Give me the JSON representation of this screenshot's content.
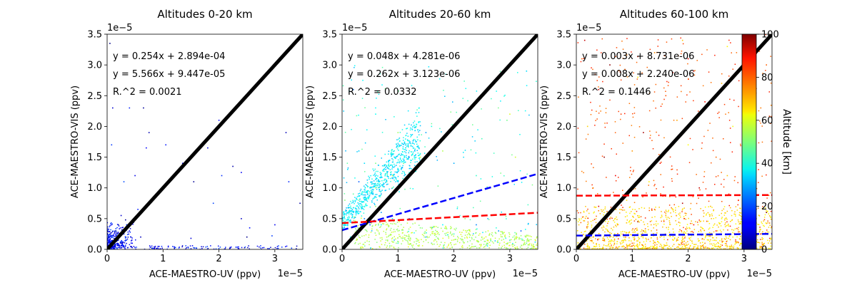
{
  "colorbar": {
    "label": "Altitude [km]",
    "ticks": [
      0,
      20,
      40,
      60,
      80,
      100
    ],
    "colormap": "jet",
    "range": [
      0,
      100
    ]
  },
  "chart_data": [
    {
      "type": "scatter",
      "title": "Altitudes 0-20 km",
      "xlabel": "ACE-MAESTRO-UV (ppv)",
      "ylabel": "ACE-MAESTRO-VIS (ppv)",
      "axis_scale_label": "1e−5",
      "xlim": [
        0,
        3.5
      ],
      "ylim": [
        0,
        3.5
      ],
      "xticks": [
        0,
        1,
        2,
        3
      ],
      "yticks": [
        0.0,
        0.5,
        1.0,
        1.5,
        2.0,
        2.5,
        3.0,
        3.5
      ],
      "altitude_range": [
        0,
        20
      ],
      "annotations": [
        {
          "text": "y = 0.254x + 2.894e-04",
          "color": "#ff0000"
        },
        {
          "text": "y = 5.566x + 9.447e-05",
          "color": "#0000ff"
        },
        {
          "text": "R.^2 = 0.0021",
          "color": "#000000"
        }
      ],
      "lines": [
        {
          "kind": "one-to-one",
          "color": "#000000",
          "style": "solid",
          "x": [
            0,
            3.5
          ],
          "y": [
            0,
            3.5
          ]
        }
      ],
      "points": [
        [
          0.1,
          0.1
        ],
        [
          0.2,
          0.15
        ],
        [
          0.3,
          0.25
        ],
        [
          0.15,
          0.3
        ],
        [
          0.05,
          0.05
        ],
        [
          0.35,
          0.4
        ],
        [
          0.25,
          0.1
        ],
        [
          0.4,
          0.3
        ],
        [
          0.1,
          0.2
        ],
        [
          0.3,
          0.05
        ],
        [
          0.5,
          0.03
        ],
        [
          0.8,
          0.02
        ],
        [
          1.2,
          0.04
        ],
        [
          1.6,
          0.02
        ],
        [
          2.2,
          0.03
        ],
        [
          2.9,
          0.01
        ],
        [
          3.3,
          0.02
        ],
        [
          0.6,
          0.2
        ],
        [
          0.45,
          0.1
        ],
        [
          0.2,
          0.4
        ],
        [
          0.1,
          2.3
        ],
        [
          0.4,
          2.3
        ],
        [
          0.65,
          2.3
        ],
        [
          0.5,
          1.2
        ],
        [
          0.08,
          1.7
        ],
        [
          0.75,
          1.9
        ],
        [
          0.7,
          1.65
        ],
        [
          0.3,
          1.1
        ],
        [
          1.35,
          1.4
        ],
        [
          1.05,
          1.7
        ],
        [
          1.55,
          1.1
        ],
        [
          1.8,
          1.65
        ],
        [
          2.05,
          1.2
        ],
        [
          2.25,
          1.35
        ],
        [
          2.4,
          1.25
        ],
        [
          1.9,
          0.75
        ],
        [
          2.4,
          0.5
        ],
        [
          2.55,
          0.35
        ],
        [
          2.5,
          0.2
        ],
        [
          1.5,
          0.18
        ],
        [
          3.25,
          1.1
        ],
        [
          3.45,
          0.75
        ],
        [
          3.0,
          0.4
        ],
        [
          2.95,
          0.22
        ],
        [
          3.2,
          1.9
        ],
        [
          2.0,
          2.1
        ],
        [
          0.05,
          3.35
        ],
        [
          0.25,
          0.55
        ],
        [
          0.55,
          0.65
        ],
        [
          0.33,
          0.48
        ]
      ]
    },
    {
      "type": "scatter",
      "title": "Altitudes 20-60 km",
      "xlabel": "ACE-MAESTRO-UV (ppv)",
      "ylabel": "ACE-MAESTRO-VIS (ppv)",
      "axis_scale_label": "1e−5",
      "xlim": [
        0,
        3.5
      ],
      "ylim": [
        0,
        3.5
      ],
      "xticks": [
        0,
        1,
        2,
        3
      ],
      "yticks": [
        0.0,
        0.5,
        1.0,
        1.5,
        2.0,
        2.5,
        3.0,
        3.5
      ],
      "altitude_range": [
        20,
        60
      ],
      "annotations": [
        {
          "text": "y = 0.048x + 4.281e-06",
          "color": "#ff0000"
        },
        {
          "text": "y = 0.262x + 3.123e-06",
          "color": "#0000ff"
        },
        {
          "text": "R.^2 = 0.0332",
          "color": "#000000"
        }
      ],
      "lines": [
        {
          "kind": "one-to-one",
          "color": "#000000",
          "style": "solid",
          "x": [
            0,
            3.5
          ],
          "y": [
            0,
            3.5
          ]
        },
        {
          "kind": "fit",
          "color": "#0000ff",
          "style": "dashed",
          "x": [
            0,
            3.5
          ],
          "y": [
            0.312,
            1.229
          ]
        },
        {
          "kind": "fit",
          "color": "#ff0000",
          "style": "dashed",
          "x": [
            0,
            3.5
          ],
          "y": [
            0.428,
            0.596
          ]
        }
      ],
      "points": [
        [
          0.1,
          0.4
        ],
        [
          0.2,
          0.6
        ],
        [
          0.3,
          0.8
        ],
        [
          0.4,
          0.5
        ],
        [
          0.5,
          0.9
        ],
        [
          0.6,
          1.0
        ],
        [
          0.7,
          0.9
        ],
        [
          0.8,
          1.1
        ],
        [
          0.9,
          1.2
        ],
        [
          1.0,
          1.3
        ],
        [
          1.1,
          1.4
        ],
        [
          1.2,
          1.5
        ],
        [
          0.5,
          0.5
        ],
        [
          0.6,
          0.7
        ],
        [
          0.7,
          0.6
        ],
        [
          0.4,
          0.7
        ],
        [
          0.9,
          1.0
        ],
        [
          1.3,
          1.6
        ],
        [
          0.2,
          0.9
        ],
        [
          0.3,
          1.1
        ],
        [
          0.1,
          1.3
        ],
        [
          0.05,
          0.8
        ],
        [
          0.3,
          0.3
        ],
        [
          0.15,
          0.2
        ],
        [
          0.8,
          0.8
        ],
        [
          1.0,
          1.1
        ],
        [
          1.2,
          1.2
        ],
        [
          1.4,
          1.5
        ],
        [
          0.4,
          1.4
        ],
        [
          0.6,
          1.4
        ],
        [
          0.5,
          0.4
        ],
        [
          0.7,
          0.4
        ],
        [
          1.0,
          0.3
        ],
        [
          1.5,
          0.2
        ],
        [
          2.0,
          0.25
        ],
        [
          2.5,
          0.2
        ],
        [
          3.0,
          0.15
        ],
        [
          3.3,
          0.1
        ],
        [
          1.2,
          0.5
        ],
        [
          1.8,
          0.4
        ],
        [
          2.2,
          0.5
        ],
        [
          2.8,
          0.3
        ],
        [
          1.0,
          0.1
        ],
        [
          0.8,
          0.2
        ],
        [
          1.6,
          0.1
        ],
        [
          2.6,
          0.1
        ],
        [
          3.2,
          0.3
        ],
        [
          0.9,
          0.5
        ],
        [
          1.4,
          0.35
        ],
        [
          2.4,
          0.4
        ],
        [
          1.6,
          2.0
        ],
        [
          1.8,
          1.6
        ],
        [
          2.0,
          1.4
        ],
        [
          2.5,
          1.8
        ],
        [
          3.0,
          2.2
        ],
        [
          3.3,
          2.9
        ],
        [
          2.95,
          2.1
        ],
        [
          0.2,
          2.6
        ],
        [
          0.6,
          2.2
        ],
        [
          1.0,
          1.9
        ],
        [
          1.5,
          1.9
        ],
        [
          2.4,
          1.2
        ],
        [
          3.1,
          1.5
        ],
        [
          0.3,
          1.6
        ]
      ]
    },
    {
      "type": "scatter",
      "title": "Altitudes 60-100 km",
      "xlabel": "ACE-MAESTRO-UV (ppv)",
      "ylabel": "ACE-MAESTRO-VIS (ppv)",
      "axis_scale_label": "1e−5",
      "xlim": [
        0,
        3.5
      ],
      "ylim": [
        0,
        3.5
      ],
      "xticks": [
        0,
        1,
        2,
        3
      ],
      "yticks": [
        0.0,
        0.5,
        1.0,
        1.5,
        2.0,
        2.5,
        3.0,
        3.5
      ],
      "altitude_range": [
        60,
        100
      ],
      "annotations": [
        {
          "text": "y = 0.003x + 8.731e-06",
          "color": "#ff0000"
        },
        {
          "text": "y = 0.008x + 2.240e-06",
          "color": "#0000ff"
        },
        {
          "text": "R.^2 = 0.1446",
          "color": "#000000"
        }
      ],
      "lines": [
        {
          "kind": "one-to-one",
          "color": "#000000",
          "style": "solid",
          "x": [
            0,
            3.5
          ],
          "y": [
            0,
            3.5
          ]
        },
        {
          "kind": "fit",
          "color": "#ff0000",
          "style": "dashed",
          "x": [
            0,
            3.5
          ],
          "y": [
            0.873,
            0.884
          ]
        },
        {
          "kind": "fit",
          "color": "#0000ff",
          "style": "dashed",
          "x": [
            0,
            3.5
          ],
          "y": [
            0.224,
            0.252
          ]
        }
      ],
      "points": [
        [
          0.1,
          0.1
        ],
        [
          0.3,
          0.2
        ],
        [
          0.5,
          0.15
        ],
        [
          0.8,
          0.25
        ],
        [
          1.0,
          0.1
        ],
        [
          1.2,
          0.3
        ],
        [
          1.5,
          0.2
        ],
        [
          1.8,
          0.15
        ],
        [
          2.0,
          0.25
        ],
        [
          2.3,
          0.1
        ],
        [
          2.5,
          0.3
        ],
        [
          2.8,
          0.2
        ],
        [
          3.0,
          0.15
        ],
        [
          3.3,
          0.25
        ],
        [
          0.2,
          0.4
        ],
        [
          0.6,
          0.5
        ],
        [
          1.1,
          0.45
        ],
        [
          1.6,
          0.55
        ],
        [
          2.1,
          0.4
        ],
        [
          2.6,
          0.5
        ],
        [
          3.1,
          0.45
        ],
        [
          0.4,
          0.7
        ],
        [
          0.9,
          0.8
        ],
        [
          1.4,
          0.65
        ],
        [
          1.9,
          0.75
        ],
        [
          2.4,
          0.7
        ],
        [
          2.9,
          0.8
        ],
        [
          3.4,
          0.6
        ],
        [
          0.3,
          1.0
        ],
        [
          0.7,
          1.2
        ],
        [
          1.3,
          1.1
        ],
        [
          1.7,
          1.3
        ],
        [
          2.2,
          1.0
        ],
        [
          2.7,
          1.2
        ],
        [
          3.2,
          1.1
        ],
        [
          0.5,
          1.5
        ],
        [
          1.0,
          1.6
        ],
        [
          1.5,
          1.4
        ],
        [
          2.0,
          1.7
        ],
        [
          2.5,
          1.5
        ],
        [
          3.0,
          1.6
        ],
        [
          0.2,
          2.0
        ],
        [
          0.8,
          2.2
        ],
        [
          1.2,
          1.9
        ],
        [
          1.8,
          2.1
        ],
        [
          2.3,
          2.4
        ],
        [
          2.8,
          2.0
        ],
        [
          3.3,
          2.3
        ],
        [
          0.4,
          2.6
        ],
        [
          1.1,
          2.8
        ],
        [
          1.6,
          2.5
        ],
        [
          2.1,
          2.9
        ],
        [
          2.6,
          2.7
        ],
        [
          3.1,
          2.6
        ],
        [
          0.6,
          3.0
        ],
        [
          1.4,
          3.2
        ],
        [
          2.0,
          3.1
        ],
        [
          2.7,
          3.3
        ],
        [
          3.4,
          3.0
        ],
        [
          0.15,
          3.4
        ],
        [
          1.9,
          3.4
        ],
        [
          3.2,
          3.45
        ]
      ]
    }
  ]
}
